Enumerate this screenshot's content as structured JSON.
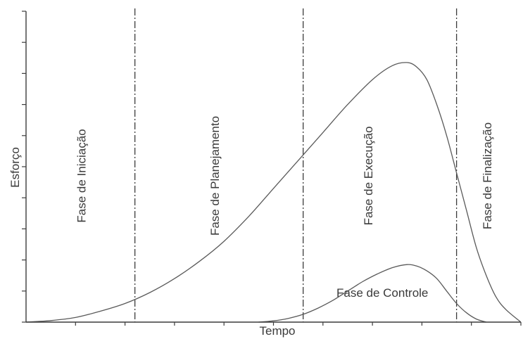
{
  "chart_data": {
    "type": "line",
    "title": "",
    "xlabel": "Tempo",
    "ylabel": "Esforço",
    "xlim": [
      0,
      100
    ],
    "ylim": [
      0,
      100
    ],
    "grid": false,
    "phase_boundaries": [
      22,
      56,
      87
    ],
    "phases": [
      {
        "label": "Fase de Iniciação",
        "x": 12
      },
      {
        "label": "Fase de Planejamento",
        "x": 39
      },
      {
        "label": "Fase de Execução",
        "x": 70
      },
      {
        "label": "Fase de Finalização",
        "x": 94
      }
    ],
    "series": [
      {
        "label": "",
        "x": [
          0,
          5,
          10,
          15,
          20,
          25,
          30,
          35,
          40,
          45,
          50,
          55,
          60,
          65,
          70,
          74,
          77,
          79,
          81,
          83,
          85,
          87,
          89,
          91,
          93,
          95,
          97,
          100
        ],
        "y": [
          0,
          0.5,
          1.5,
          3.5,
          6,
          9.5,
          14,
          19.5,
          26,
          34,
          43,
          52,
          61,
          70,
          78,
          82.5,
          83.5,
          82,
          78,
          70,
          60,
          48,
          36,
          24,
          15,
          8,
          4,
          0
        ]
      },
      {
        "label": "Fase de Controle",
        "x": [
          47,
          50,
          53,
          56,
          59,
          62,
          65,
          68,
          71,
          74,
          77,
          79,
          81,
          83,
          85,
          87,
          89,
          91,
          93
        ],
        "y": [
          0,
          0.4,
          1.2,
          2.5,
          4.5,
          7,
          10,
          13,
          15.5,
          17.5,
          18.5,
          18,
          16.5,
          14,
          10,
          6,
          3,
          1,
          0
        ]
      }
    ],
    "series_label_position": {
      "x": 72,
      "y": 9.5
    }
  }
}
